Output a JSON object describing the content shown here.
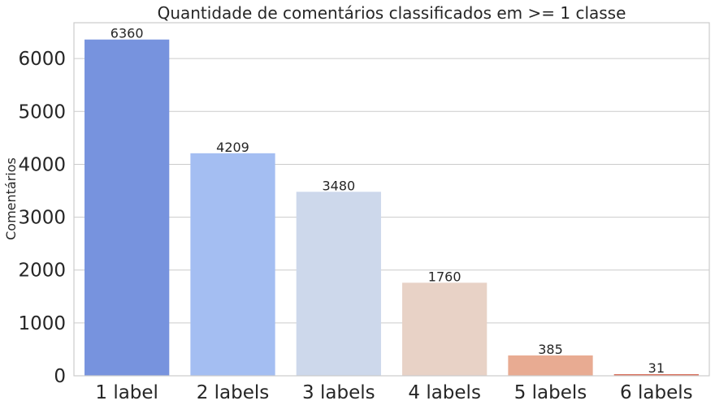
{
  "chart_data": {
    "type": "bar",
    "title": "Quantidade de comentários classificados em >= 1 classe",
    "xlabel": "",
    "ylabel": "Comentários",
    "categories": [
      "1 label",
      "2 labels",
      "3 labels",
      "4 labels",
      "5 labels",
      "6 labels"
    ],
    "values": [
      6360,
      4209,
      3480,
      1760,
      385,
      31
    ],
    "data_labels": [
      "6360",
      "4209",
      "3480",
      "1760",
      "385",
      "31"
    ],
    "colors": [
      "#7793de",
      "#a4bef2",
      "#cdd8eb",
      "#e8d2c6",
      "#e8ab92",
      "#d8715e"
    ],
    "ylim": [
      0,
      6678
    ],
    "yticks": [
      0,
      1000,
      2000,
      3000,
      4000,
      5000,
      6000
    ],
    "ytick_labels": [
      "0",
      "1000",
      "2000",
      "3000",
      "4000",
      "5000",
      "6000"
    ],
    "grid": true,
    "legend": "none"
  }
}
